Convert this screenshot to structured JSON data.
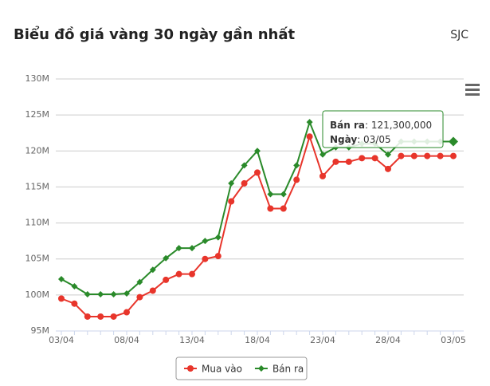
{
  "chart_data": {
    "type": "line",
    "title": "Biểu đồ giá vàng 30 ngày gần nhất",
    "subtitle": "SJC",
    "categories": [
      "03/04",
      null,
      null,
      null,
      null,
      "08/04",
      null,
      null,
      null,
      null,
      "13/04",
      null,
      null,
      null,
      null,
      "18/04",
      null,
      null,
      null,
      null,
      "23/04",
      null,
      null,
      null,
      null,
      "28/04",
      null,
      null,
      null,
      null,
      "03/05"
    ],
    "series": [
      {
        "name": "Mua vào",
        "color": "#e8352b",
        "marker": "circle",
        "values": [
          99500000,
          98800000,
          97000000,
          97000000,
          97000000,
          97600000,
          99700000,
          100600000,
          102100000,
          102900000,
          102900000,
          105000000,
          105400000,
          113000000,
          115500000,
          117000000,
          112000000,
          112000000,
          116000000,
          122000000,
          116500000,
          118500000,
          118500000,
          119000000,
          119000000,
          117500000,
          119300000,
          119300000,
          119300000,
          119300000,
          119300000
        ]
      },
      {
        "name": "Bán ra",
        "color": "#2a8a2a",
        "marker": "diamond",
        "values": [
          102200000,
          101200000,
          100100000,
          100100000,
          100100000,
          100200000,
          101800000,
          103500000,
          105100000,
          106500000,
          106500000,
          107500000,
          108000000,
          115500000,
          118000000,
          120000000,
          114000000,
          114000000,
          118000000,
          124000000,
          119500000,
          120500000,
          120500000,
          121000000,
          121000000,
          119500000,
          121300000,
          121300000,
          121300000,
          121300000,
          121300000
        ]
      }
    ],
    "ylim": [
      95000000,
      130000000
    ],
    "yticks": [
      {
        "value": 95000000,
        "label": "95M"
      },
      {
        "value": 100000000,
        "label": "100M"
      },
      {
        "value": 105000000,
        "label": "105M"
      },
      {
        "value": 110000000,
        "label": "110M"
      },
      {
        "value": 115000000,
        "label": "115M"
      },
      {
        "value": 120000000,
        "label": "120M"
      },
      {
        "value": 125000000,
        "label": "125M"
      },
      {
        "value": 130000000,
        "label": "130M"
      }
    ],
    "grid": true,
    "legend": "bottom",
    "tooltip": {
      "series": 1,
      "index": 30,
      "value_label": "121,300,000",
      "date_label": "Ngày"
    }
  }
}
